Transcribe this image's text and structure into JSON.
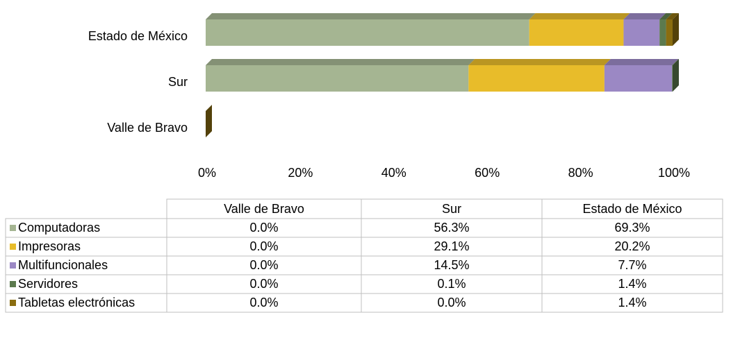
{
  "chart_data": {
    "type": "bar",
    "orientation": "horizontal",
    "stacked": true,
    "categories": [
      "Valle de Bravo",
      "Sur",
      "Estado de México"
    ],
    "series": [
      {
        "name": "Computadoras",
        "color": "#a5b592",
        "values": [
          0.0,
          56.3,
          69.3
        ],
        "value_labels": [
          "0.0%",
          "56.3%",
          "69.3%"
        ]
      },
      {
        "name": "Impresoras",
        "color": "#e8bc2a",
        "values": [
          0.0,
          29.1,
          20.2
        ],
        "value_labels": [
          "0.0%",
          "29.1%",
          "20.2%"
        ]
      },
      {
        "name": "Multifuncionales",
        "color": "#9b88c4",
        "values": [
          0.0,
          14.5,
          7.7
        ],
        "value_labels": [
          "0.0%",
          "14.5%",
          "7.7%"
        ]
      },
      {
        "name": "Servidores",
        "color": "#5c7a4e",
        "values": [
          0.0,
          0.1,
          1.4
        ],
        "value_labels": [
          "0.0%",
          "0.1%",
          "1.4%"
        ]
      },
      {
        "name": "Tabletas electrónicas",
        "color": "#8a6d10",
        "values": [
          0.0,
          0.0,
          1.4
        ],
        "value_labels": [
          "0.0%",
          "0.0%",
          "1.4%"
        ]
      }
    ],
    "xlim": [
      0,
      100
    ],
    "xticks": [
      {
        "value": 0,
        "label": "0%"
      },
      {
        "value": 20,
        "label": "20%"
      },
      {
        "value": 40,
        "label": "40%"
      },
      {
        "value": 60,
        "label": "60%"
      },
      {
        "value": 80,
        "label": "80%"
      },
      {
        "value": 100,
        "label": "100%"
      }
    ],
    "data_table": true
  }
}
